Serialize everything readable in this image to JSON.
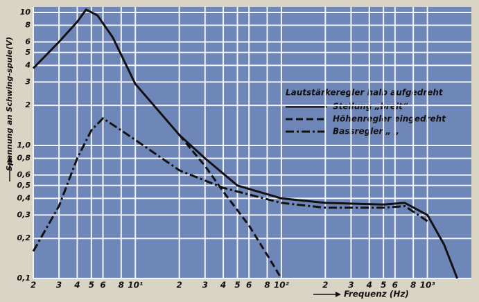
{
  "chart_data": {
    "type": "line",
    "y_label": "Spannung an Schwing-spule(V)",
    "x_label": "Frequenz (Hz)",
    "legend_title": "Lautstärkeregler halb aufgedreht",
    "log_x": true,
    "log_y": true,
    "grid": true,
    "legend": "right",
    "xlim": [
      2,
      2000
    ],
    "ylim": [
      0.1,
      11
    ],
    "xticks": [
      2,
      3,
      4,
      5,
      6,
      8,
      {
        "value": 10,
        "label": "10¹"
      },
      {
        "value": 20,
        "label": "2"
      },
      {
        "value": 30,
        "label": "3"
      },
      {
        "value": 40,
        "label": "4"
      },
      {
        "value": 50,
        "label": "5"
      },
      {
        "value": 60,
        "label": "6"
      },
      {
        "value": 80,
        "label": "8"
      },
      {
        "value": 100,
        "label": "10²"
      },
      {
        "value": 200,
        "label": "2"
      },
      {
        "value": 300,
        "label": "3"
      },
      {
        "value": 400,
        "label": "4"
      },
      {
        "value": 500,
        "label": "5"
      },
      {
        "value": 600,
        "label": "6"
      },
      {
        "value": 800,
        "label": "8"
      },
      {
        "value": 1000,
        "label": "10³"
      }
    ],
    "yticks": [
      {
        "value": 0.1,
        "label": "0,1"
      },
      {
        "value": 0.2,
        "label": "0,2"
      },
      {
        "value": 0.3,
        "label": "0,3"
      },
      {
        "value": 0.4,
        "label": "0,4"
      },
      {
        "value": 0.5,
        "label": "0,5"
      },
      {
        "value": 0.6,
        "label": "0,6"
      },
      {
        "value": 0.8,
        "label": "0,8"
      },
      {
        "value": 1,
        "label": "1,0"
      },
      2,
      3,
      4,
      5,
      6,
      8,
      10
    ],
    "series": [
      {
        "name": "Stellung „breit“",
        "color": "#111111",
        "style": "solid",
        "x": [
          2,
          3,
          4,
          4.6,
          5.5,
          7,
          10,
          20,
          30,
          50,
          100,
          200,
          500,
          700,
          1000,
          1300,
          1600
        ],
        "values": [
          3.8,
          6,
          8.5,
          10.5,
          9.5,
          6.5,
          2.9,
          1.2,
          0.8,
          0.5,
          0.4,
          0.37,
          0.36,
          0.37,
          0.3,
          0.18,
          0.1
        ]
      },
      {
        "name": "Höhenregler eingedreht",
        "color": "#111111",
        "style": "dashed",
        "x": [
          20,
          30,
          40,
          60,
          80,
          100
        ],
        "values": [
          1.2,
          0.7,
          0.45,
          0.25,
          0.15,
          0.1
        ]
      },
      {
        "name": "Bassregler  „  „",
        "color": "#111111",
        "style": "dashdot",
        "x": [
          2,
          3,
          4,
          5,
          6,
          8,
          10,
          20,
          40,
          100,
          200,
          500,
          700,
          1000
        ],
        "values": [
          0.16,
          0.35,
          0.8,
          1.3,
          1.6,
          1.3,
          1.1,
          0.65,
          0.48,
          0.37,
          0.34,
          0.34,
          0.35,
          0.27
        ]
      }
    ]
  }
}
